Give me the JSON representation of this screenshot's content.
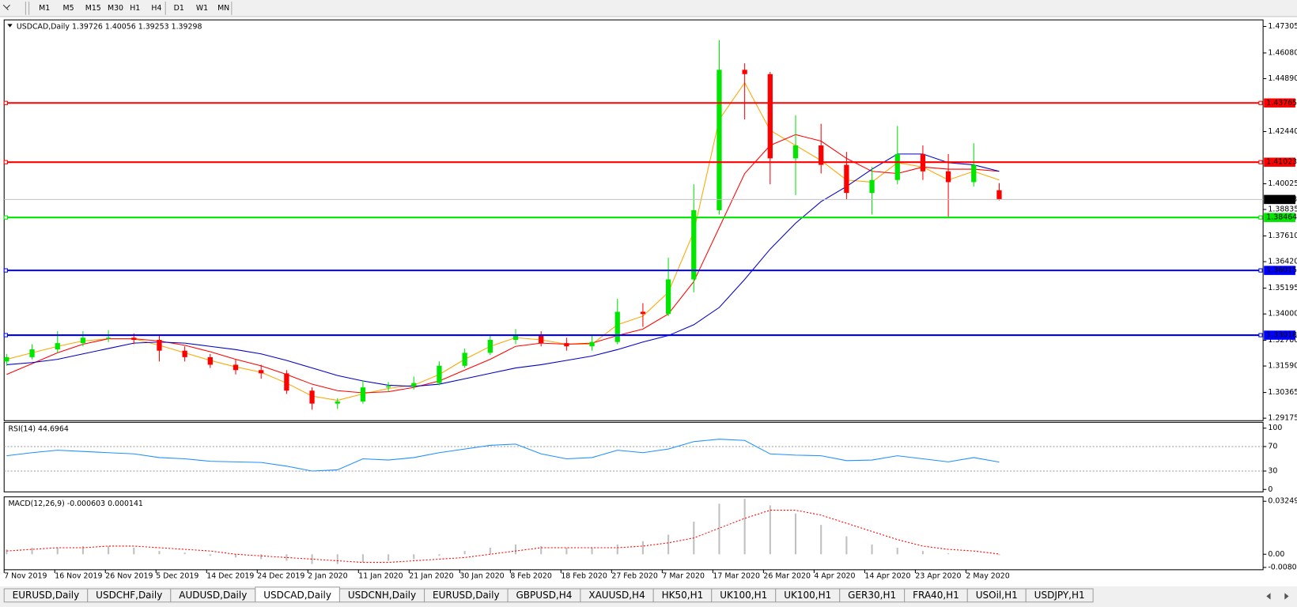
{
  "toolbar": {
    "timeframes": [
      "M1",
      "M5",
      "M15",
      "M30",
      "H1",
      "H4",
      "D1",
      "W1",
      "MN"
    ]
  },
  "chart": {
    "type": "candlestick",
    "symbol_label": "USDCAD,Daily",
    "up_color": "#00e600",
    "down_color": "#ff0000",
    "candles": [
      [
        1.318,
        1.3215,
        1.316,
        1.32
      ],
      [
        1.32,
        1.326,
        1.319,
        1.3236
      ],
      [
        1.3236,
        1.332,
        1.322,
        1.3265
      ],
      [
        1.3265,
        1.332,
        1.325,
        1.329
      ],
      [
        1.329,
        1.3325,
        1.327,
        1.329
      ],
      [
        1.329,
        1.331,
        1.326,
        1.328
      ],
      [
        1.328,
        1.33,
        1.318,
        1.323
      ],
      [
        1.323,
        1.325,
        1.318,
        1.32
      ],
      [
        1.32,
        1.3215,
        1.315,
        1.3165
      ],
      [
        1.3165,
        1.319,
        1.312,
        1.314
      ],
      [
        1.314,
        1.3165,
        1.31,
        1.3125
      ],
      [
        1.3125,
        1.314,
        1.303,
        1.3045
      ],
      [
        1.3045,
        1.306,
        1.2957,
        1.2985
      ],
      [
        1.2985,
        1.301,
        1.296,
        1.2995
      ],
      [
        1.2995,
        1.309,
        1.2985,
        1.306
      ],
      [
        1.306,
        1.3085,
        1.304,
        1.3065
      ],
      [
        1.3065,
        1.311,
        1.305,
        1.308
      ],
      [
        1.308,
        1.318,
        1.307,
        1.316
      ],
      [
        1.316,
        1.324,
        1.315,
        1.322
      ],
      [
        1.322,
        1.33,
        1.321,
        1.328
      ],
      [
        1.328,
        1.333,
        1.326,
        1.33
      ],
      [
        1.33,
        1.332,
        1.325,
        1.3265
      ],
      [
        1.3265,
        1.329,
        1.323,
        1.325
      ],
      [
        1.325,
        1.33,
        1.323,
        1.327
      ],
      [
        1.327,
        1.347,
        1.326,
        1.341
      ],
      [
        1.341,
        1.345,
        1.334,
        1.34
      ],
      [
        1.34,
        1.366,
        1.339,
        1.356
      ],
      [
        1.356,
        1.4,
        1.35,
        1.388
      ],
      [
        1.388,
        1.4668,
        1.386,
        1.453
      ],
      [
        1.453,
        1.456,
        1.43,
        1.451
      ],
      [
        1.451,
        1.452,
        1.4,
        1.412
      ],
      [
        1.412,
        1.432,
        1.395,
        1.418
      ],
      [
        1.418,
        1.428,
        1.405,
        1.409
      ],
      [
        1.409,
        1.415,
        1.393,
        1.396
      ],
      [
        1.396,
        1.408,
        1.386,
        1.402
      ],
      [
        1.402,
        1.427,
        1.4,
        1.414
      ],
      [
        1.414,
        1.418,
        1.402,
        1.406
      ],
      [
        1.406,
        1.414,
        1.385,
        1.401
      ],
      [
        1.401,
        1.419,
        1.399,
        1.409
      ],
      [
        1.39726,
        1.40056,
        1.39253,
        1.39298
      ]
    ],
    "ylim": [
      1.2906,
      1.4761
    ],
    "yticks": [
      1.47305,
      {
        "value": 1.4608,
        "label": "1.46080"
      },
      {
        "value": 1.4489,
        "label": "1.44890"
      },
      {
        "value": 1.4244,
        "label": "1.42440"
      },
      1.40025,
      1.38835,
      {
        "value": 1.3761,
        "label": "1.37610"
      },
      {
        "value": 1.3642,
        "label": "1.36420"
      },
      1.35195,
      {
        "value": 1.34,
        "label": "1.34000"
      },
      {
        "value": 1.3278,
        "label": "1.32780"
      },
      {
        "value": 1.3159,
        "label": "1.31590"
      },
      1.30365,
      1.29175
    ],
    "levels": [
      {
        "value": 1.43765,
        "color": "#ff0000"
      },
      {
        "value": 1.41023,
        "color": "#ff0000"
      },
      {
        "value": 1.38464,
        "color": "#00e600"
      },
      {
        "value": 1.36015,
        "color": "#0000ff"
      },
      {
        "value": 1.33018,
        "color": "#0000ff"
      }
    ],
    "moving_averages": [
      {
        "color": "#ffa500",
        "values": [
          1.319,
          1.322,
          1.325,
          1.3275,
          1.3285,
          1.3285,
          1.3255,
          1.322,
          1.3185,
          1.3155,
          1.313,
          1.308,
          1.302,
          1.3,
          1.303,
          1.3055,
          1.307,
          1.312,
          1.319,
          1.325,
          1.329,
          1.328,
          1.326,
          1.326,
          1.335,
          1.339,
          1.35,
          1.378,
          1.43,
          1.447,
          1.425,
          1.418,
          1.411,
          1.402,
          1.401,
          1.41,
          1.408,
          1.402,
          1.406,
          1.402
        ]
      },
      {
        "color": "#ff0000",
        "values": [
          1.312,
          1.317,
          1.322,
          1.326,
          1.3285,
          1.3285,
          1.3275,
          1.3255,
          1.3225,
          1.319,
          1.316,
          1.312,
          1.3075,
          1.3045,
          1.3035,
          1.304,
          1.306,
          1.309,
          1.314,
          1.319,
          1.325,
          1.3265,
          1.326,
          1.3265,
          1.33,
          1.333,
          1.34,
          1.355,
          1.38,
          1.405,
          1.418,
          1.423,
          1.42,
          1.412,
          1.406,
          1.405,
          1.408,
          1.407,
          1.407,
          1.406
        ]
      },
      {
        "color": "#0000c8",
        "values": [
          1.3165,
          1.3175,
          1.319,
          1.3215,
          1.324,
          1.3265,
          1.327,
          1.3265,
          1.325,
          1.3235,
          1.3215,
          1.3185,
          1.315,
          1.3115,
          1.309,
          1.307,
          1.3065,
          1.3075,
          1.31,
          1.3125,
          1.315,
          1.3165,
          1.3185,
          1.3205,
          1.3235,
          1.327,
          1.33,
          1.335,
          1.343,
          1.356,
          1.37,
          1.382,
          1.392,
          1.399,
          1.407,
          1.414,
          1.414,
          1.41,
          1.409,
          1.406
        ]
      }
    ],
    "dates": [
      "7 Nov 2019",
      "16 Nov 2019",
      "26 Nov 2019",
      "5 Dec 2019",
      "14 Dec 2019",
      "24 Dec 2019",
      "2 Jan 2020",
      "11 Jan 2020",
      "21 Jan 2020",
      "30 Jan 2020",
      "8 Feb 2020",
      "18 Feb 2020",
      "27 Feb 2020",
      "7 Mar 2020",
      "17 Mar 2020",
      "26 Mar 2020",
      "4 Apr 2020",
      "14 Apr 2020",
      "23 Apr 2020",
      "2 May 2020"
    ],
    "rsi": {
      "label": "RSI(14)",
      "color": "#1e90ff",
      "values": [
        55,
        60,
        64,
        62,
        60,
        58,
        52,
        50,
        46,
        45,
        44,
        38,
        30,
        32,
        50,
        48,
        52,
        60,
        66,
        72,
        74,
        58,
        50,
        52,
        64,
        60,
        66,
        78,
        82,
        80,
        58,
        56,
        55,
        47,
        48,
        55,
        50,
        45,
        52,
        44.6964
      ],
      "ylim": [
        -4,
        109.5
      ],
      "yticks": [
        100,
        70,
        30,
        0
      ],
      "levels": [
        70,
        30
      ]
    },
    "macd": {
      "label": "MACD(12,26,9)",
      "signal_color": "#ff0000",
      "bar_color": "#c0c0c0",
      "main": [
        0.003,
        0.004,
        0.004,
        0.005,
        0.005,
        0.004,
        0.002,
        0.001,
        -0.001,
        -0.002,
        -0.003,
        -0.004,
        -0.006,
        -0.006,
        -0.005,
        -0.004,
        -0.003,
        -0.001,
        0.002,
        0.004,
        0.006,
        0.005,
        0.004,
        0.004,
        0.006,
        0.008,
        0.012,
        0.02,
        0.031,
        0.034,
        0.03,
        0.025,
        0.018,
        0.011,
        0.006,
        0.004,
        0.002,
        0.0005,
        0.0002,
        -0.000603
      ],
      "signal": [
        0.002,
        0.003,
        0.004,
        0.004,
        0.005,
        0.005,
        0.004,
        0.003,
        0.002,
        0,
        -0.001,
        -0.002,
        -0.003,
        -0.004,
        -0.005,
        -0.005,
        -0.004,
        -0.003,
        -0.002,
        0,
        0.002,
        0.004,
        0.004,
        0.004,
        0.004,
        0.005,
        0.007,
        0.01,
        0.016,
        0.022,
        0.027,
        0.027,
        0.024,
        0.019,
        0.014,
        0.009,
        0.005,
        0.003,
        0.002,
        0.000141
      ],
      "ylim": [
        -0.0095,
        0.0352
      ],
      "yticks": [
        0.032493,
        {
          "value": 0,
          "label": "0.00"
        },
        -0.008086
      ]
    }
  },
  "tabs": {
    "items": [
      "EURUSD,Daily",
      "USDCHF,Daily",
      "AUDUSD,Daily",
      "USDCAD,Daily",
      "USDCNH,Daily",
      "EURUSD,Daily",
      "GBPUSD,H4",
      "XAUUSD,H4",
      "HK50,H1",
      "UK100,H1",
      "UK100,H1",
      "GER30,H1",
      "FRA40,H1",
      "USOil,H1",
      "USDJPY,H1"
    ],
    "active": 3
  }
}
